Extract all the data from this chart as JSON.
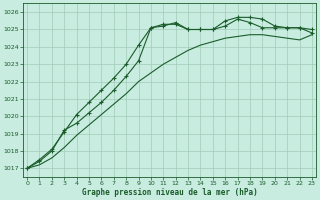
{
  "background_color": "#c8ece0",
  "grid_color": "#a0ccb8",
  "line_color": "#1a5c2a",
  "title": "Graphe pression niveau de la mer (hPa)",
  "xlim": [
    -0.3,
    23.3
  ],
  "ylim": [
    1016.5,
    1026.5
  ],
  "yticks": [
    1017,
    1018,
    1019,
    1020,
    1021,
    1022,
    1023,
    1024,
    1025,
    1026
  ],
  "xticks": [
    0,
    1,
    2,
    3,
    4,
    5,
    6,
    7,
    8,
    9,
    10,
    11,
    12,
    13,
    14,
    15,
    16,
    17,
    18,
    19,
    20,
    21,
    22,
    23
  ],
  "s1_x": [
    0,
    1,
    2,
    3,
    4,
    5,
    6,
    7,
    8,
    9,
    10,
    11,
    12,
    13,
    14,
    15,
    16,
    17,
    18,
    19,
    20,
    21,
    22,
    23
  ],
  "s1_y": [
    1017.0,
    1017.5,
    1018.1,
    1019.1,
    1020.1,
    1020.8,
    1021.5,
    1022.2,
    1023.0,
    1024.1,
    1025.1,
    1025.3,
    1025.3,
    1025.0,
    1025.0,
    1025.0,
    1025.5,
    1025.7,
    1025.7,
    1025.6,
    1025.2,
    1025.1,
    1025.1,
    1024.8
  ],
  "s2_x": [
    0,
    1,
    2,
    3,
    4,
    5,
    6,
    7,
    8,
    9,
    10,
    11,
    12,
    13,
    14,
    15,
    16,
    17,
    18,
    19,
    20,
    21,
    22,
    23
  ],
  "s2_y": [
    1017.0,
    1017.4,
    1018.0,
    1019.2,
    1019.6,
    1020.2,
    1020.8,
    1021.5,
    1022.3,
    1023.2,
    1025.1,
    1025.2,
    1025.4,
    1025.0,
    1025.0,
    1025.0,
    1025.2,
    1025.6,
    1025.4,
    1025.1,
    1025.1,
    1025.1,
    1025.1,
    1025.0
  ],
  "s3_x": [
    0,
    1,
    2,
    3,
    4,
    5,
    6,
    7,
    8,
    9,
    10,
    11,
    12,
    13,
    14,
    15,
    16,
    17,
    18,
    19,
    20,
    21,
    22,
    23
  ],
  "s3_y": [
    1017.0,
    1017.2,
    1017.6,
    1018.2,
    1018.9,
    1019.5,
    1020.1,
    1020.7,
    1021.3,
    1022.0,
    1022.5,
    1023.0,
    1023.4,
    1023.8,
    1024.1,
    1024.3,
    1024.5,
    1024.6,
    1024.7,
    1024.7,
    1024.6,
    1024.5,
    1024.4,
    1024.7
  ]
}
